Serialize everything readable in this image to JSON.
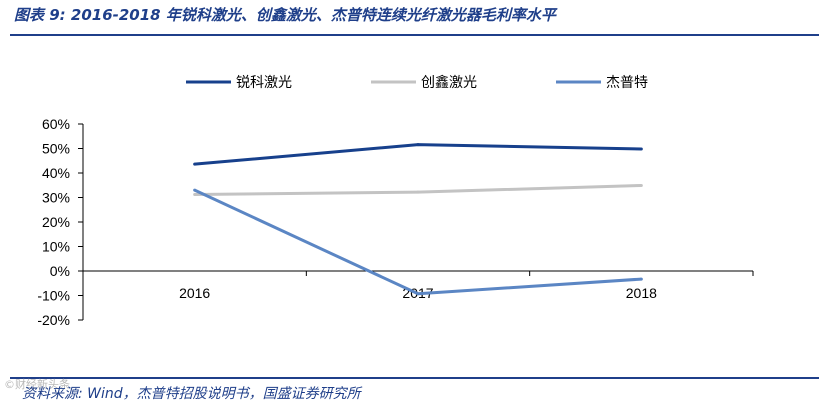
{
  "header": {
    "title": "图表 9:  2016-2018 年锐科激光、创鑫激光、杰普特连续光纤激光器毛利率水平"
  },
  "footer": {
    "source": "资料来源: Wind，杰普特招股说明书，国盛证券研究所",
    "watermark": "©财经新头条"
  },
  "colors": {
    "accent": "#1f3f8a",
    "series": [
      "#17408c",
      "#c3c3c3",
      "#5b86c4"
    ]
  },
  "chart_data": {
    "type": "line",
    "title": "",
    "xlabel": "",
    "ylabel": "",
    "x": [
      "2016",
      "2017",
      "2018"
    ],
    "ylim": [
      -20,
      60
    ],
    "yticks": [
      -20,
      -10,
      0,
      10,
      20,
      30,
      40,
      50,
      60
    ],
    "ytick_labels": [
      "-20%",
      "-10%",
      "0%",
      "10%",
      "20%",
      "30%",
      "40%",
      "50%",
      "60%"
    ],
    "grid": false,
    "legend_position": "top",
    "series": [
      {
        "name": "锐科激光",
        "values": [
          43.6,
          51.6,
          49.8
        ]
      },
      {
        "name": "创鑫激光",
        "values": [
          31.2,
          32.2,
          34.9
        ]
      },
      {
        "name": "杰普特",
        "values": [
          33,
          -9.3,
          -3.3
        ]
      }
    ]
  }
}
